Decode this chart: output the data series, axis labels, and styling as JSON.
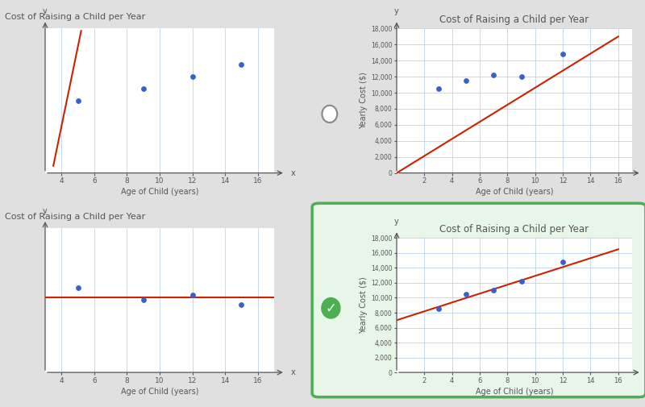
{
  "bg_color": "#e0e0e0",
  "panel_bg": "#ebebeb",
  "chart_bg": "#ffffff",
  "grid_color": "#b8cfe8",
  "dot_color": "#3a5fcd",
  "line_color": "#cc2200",
  "title_color": "#555555",
  "axis_color": "#555555",
  "top_left": {
    "title": "Cost of Raising a Child per Year",
    "data_x": [
      5,
      9,
      12,
      15
    ],
    "data_y": [
      3.0,
      3.5,
      4.0,
      4.5
    ],
    "line_x1": 3.5,
    "line_y1": 0.3,
    "line_x2": 5.2,
    "line_y2": 5.9,
    "ylim": [
      0,
      6
    ],
    "xlim": [
      3,
      17
    ],
    "xticks": [
      4,
      6,
      8,
      10,
      12,
      14,
      16
    ]
  },
  "top_right": {
    "title": "Cost of Raising a Child per Year",
    "data_x": [
      3,
      5,
      7,
      9,
      12
    ],
    "data_y": [
      10500,
      11500,
      12200,
      12000,
      14800
    ],
    "line_x": [
      0,
      16
    ],
    "line_y": [
      0,
      17000
    ],
    "ylim": [
      0,
      18000
    ],
    "xlim": [
      0,
      17
    ],
    "yticks": [
      0,
      2000,
      4000,
      6000,
      8000,
      10000,
      12000,
      14000,
      16000,
      18000
    ],
    "xticks": [
      2,
      4,
      6,
      8,
      10,
      12,
      14,
      16
    ]
  },
  "bottom_left": {
    "title": "Cost of Raising a Child per Year",
    "data_x": [
      5,
      9,
      12,
      15
    ],
    "data_y": [
      3.5,
      3.0,
      3.2,
      2.8
    ],
    "line_y_flat": 3.1,
    "ylim": [
      0,
      6
    ],
    "xlim": [
      3,
      17
    ],
    "xticks": [
      4,
      6,
      8,
      10,
      12,
      14,
      16
    ]
  },
  "bottom_right": {
    "title": "Cost of Raising a Child per Year",
    "data_x": [
      3,
      5,
      7,
      9,
      12
    ],
    "data_y": [
      8500,
      10500,
      11000,
      12200,
      14800
    ],
    "line_x": [
      0,
      16
    ],
    "line_y": [
      7000,
      16500
    ],
    "ylim": [
      0,
      18000
    ],
    "xlim": [
      0,
      17
    ],
    "yticks": [
      0,
      2000,
      4000,
      6000,
      8000,
      10000,
      12000,
      14000,
      16000,
      18000
    ],
    "xticks": [
      2,
      4,
      6,
      8,
      10,
      12,
      14,
      16
    ]
  }
}
